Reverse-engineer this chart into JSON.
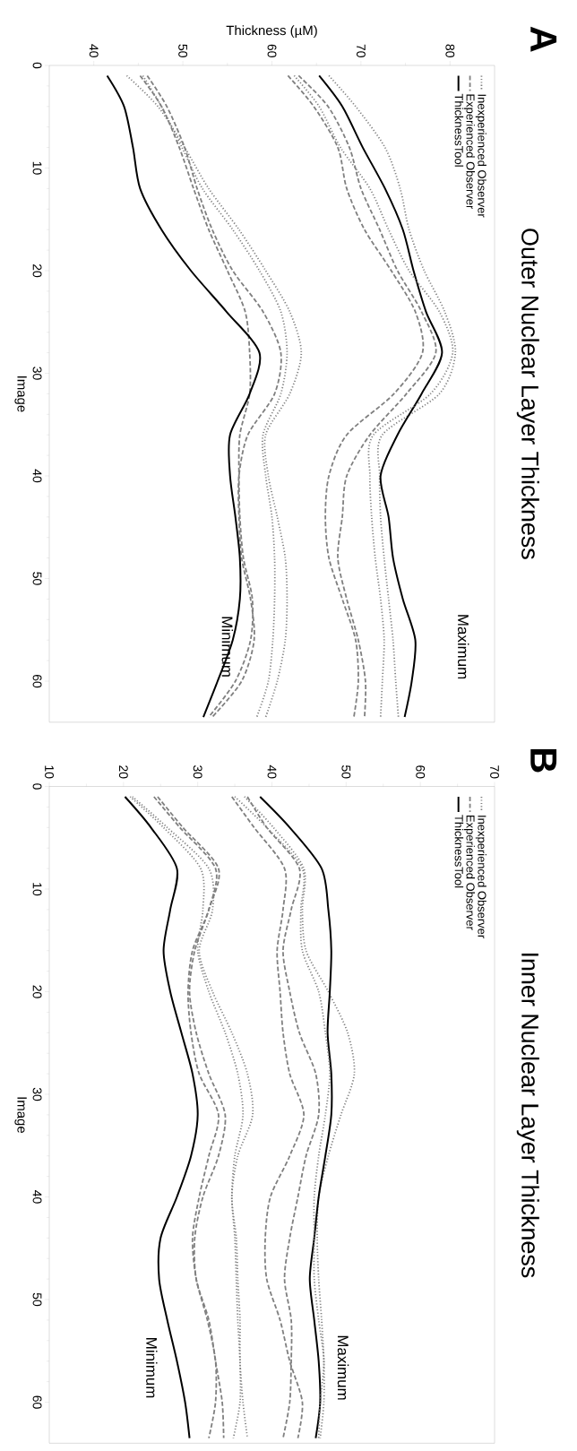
{
  "chart_data": [
    {
      "type": "line",
      "xlabel": "Thickness (µM)",
      "ylabel": "Image",
      "xlim": [
        35,
        85
      ],
      "ylim": [
        64,
        0
      ],
      "xticks": [
        40,
        50,
        60,
        70,
        80
      ],
      "yticks": [
        0,
        10,
        20,
        30,
        40,
        50,
        60
      ],
      "legend": "top right",
      "series": [
        {
          "name": "Inexperienced Observer",
          "color": "#808080",
          "line_style": "dotted",
          "x": [
            66.4,
            69.4,
            72.7,
            74.4,
            75.4,
            77.1,
            79.4,
            80.6,
            78.8,
            72.4,
            72.1,
            72.2,
            72.6,
            73.1,
            73.6,
            73.9,
            74.2
          ],
          "values": [
            1,
            4,
            8,
            12,
            16,
            20,
            24,
            28,
            32,
            36,
            40,
            44,
            48,
            52,
            56,
            60,
            63.5
          ]
        },
        {
          "name": "Experienced Observer",
          "color": "#808080",
          "line_style": "dashed",
          "x": [
            63.0,
            66.3,
            68.7,
            70.0,
            72.1,
            74.1,
            76.8,
            78.4,
            75.1,
            71.0,
            68.4,
            67.9,
            67.4,
            68.4,
            69.7,
            70.5,
            70.4
          ],
          "values": [
            1,
            4,
            8,
            12,
            16,
            20,
            24,
            28,
            32,
            36,
            40,
            44,
            48,
            52,
            56,
            60,
            63.5
          ]
        },
        {
          "name": "ThicknessTool",
          "color": "#000000",
          "line_style": "solid",
          "x": [
            65.3,
            67.9,
            70.2,
            72.7,
            74.7,
            75.9,
            77.3,
            79.1,
            76.8,
            74.1,
            72.2,
            73.1,
            73.6,
            74.7,
            76.1,
            75.7,
            74.9
          ],
          "values": [
            1,
            4,
            8,
            12,
            16,
            20,
            24,
            28,
            32,
            36,
            40,
            44,
            48,
            52,
            56,
            60,
            63.5
          ]
        },
        {
          "color": "#808080",
          "line_style": "dotted",
          "x": [
            62.5,
            65.3,
            67.7,
            71.0,
            73.1,
            75.4,
            78.8,
            80.3,
            77.8,
            71.4,
            71.0,
            71.2,
            71.6,
            72.2,
            72.6,
            72.4,
            72.2
          ],
          "values": [
            1,
            4,
            8,
            12,
            16,
            20,
            24,
            28,
            32,
            36,
            40,
            44,
            48,
            52,
            56,
            60,
            63.5
          ]
        },
        {
          "color": "#808080",
          "line_style": "dashed",
          "x": [
            61.8,
            64.7,
            67.4,
            68.4,
            70.4,
            73.4,
            76.1,
            76.9,
            73.7,
            68.4,
            66.4,
            66.0,
            66.4,
            67.9,
            69.4,
            69.7,
            69.2
          ],
          "values": [
            1,
            4,
            8,
            12,
            16,
            20,
            24,
            28,
            32,
            36,
            40,
            44,
            48,
            52,
            56,
            60,
            63.5
          ]
        },
        {
          "color": "#808080",
          "line_style": "dotted",
          "x": [
            43.7,
            47.2,
            50.2,
            52.9,
            56.3,
            59.3,
            62.0,
            63.3,
            62.0,
            59.3,
            59.6,
            60.6,
            61.5,
            61.7,
            61.5,
            60.6,
            59.3
          ],
          "values": [
            1,
            4,
            8,
            12,
            16,
            20,
            24,
            28,
            32,
            36,
            40,
            44,
            48,
            52,
            56,
            60,
            63.5
          ]
        },
        {
          "color": "#808080",
          "line_style": "dotted",
          "x": [
            45.5,
            47.6,
            49.9,
            52.2,
            55.6,
            58.6,
            61.0,
            61.7,
            61.0,
            59.0,
            59.3,
            60.0,
            60.3,
            60.3,
            60.1,
            59.6,
            58.3
          ],
          "values": [
            1,
            4,
            8,
            12,
            16,
            20,
            24,
            28,
            32,
            36,
            40,
            44,
            48,
            52,
            56,
            60,
            63.5
          ]
        },
        {
          "color": "#808080",
          "line_style": "dashed",
          "x": [
            46.0,
            48.2,
            50.2,
            51.6,
            53.3,
            55.6,
            59.0,
            61.0,
            60.3,
            57.3,
            56.3,
            56.3,
            56.6,
            57.6,
            58.0,
            56.6,
            53.3
          ],
          "values": [
            1,
            4,
            8,
            12,
            16,
            20,
            24,
            28,
            32,
            36,
            40,
            44,
            48,
            52,
            56,
            60,
            63.5
          ]
        },
        {
          "color": "#808080",
          "line_style": "dashed",
          "x": [
            45.2,
            47.6,
            49.6,
            51.2,
            52.9,
            55.0,
            57.0,
            57.5,
            57.5,
            56.4,
            56.3,
            56.4,
            56.8,
            57.8,
            57.6,
            55.9,
            52.9
          ],
          "values": [
            1,
            4,
            8,
            12,
            16,
            20,
            24,
            28,
            32,
            36,
            40,
            44,
            48,
            52,
            56,
            60,
            63.5
          ]
        },
        {
          "color": "#000000",
          "line_style": "solid",
          "x": [
            41.5,
            43.4,
            44.4,
            45.2,
            47.6,
            50.9,
            54.9,
            58.6,
            57.5,
            55.3,
            55.3,
            55.9,
            56.4,
            56.4,
            55.6,
            53.9,
            52.3
          ],
          "values": [
            1,
            4,
            8,
            12,
            16,
            20,
            24,
            28,
            32,
            36,
            40,
            44,
            48,
            52,
            56,
            60,
            63.5
          ]
        }
      ],
      "annotations": [
        "A",
        "Outer Nuclear Layer Thickness",
        "Maximum",
        "Minimum"
      ]
    },
    {
      "type": "line",
      "ylabel": "Image",
      "xlim": [
        10,
        70
      ],
      "ylim": [
        64,
        0
      ],
      "xticks": [
        10,
        20,
        30,
        40,
        50,
        60,
        70
      ],
      "yticks": [
        0,
        10,
        20,
        30,
        40,
        50,
        60
      ],
      "legend": "top right",
      "series": [
        {
          "name": "Inexperienced Observer",
          "color": "#808080",
          "line_style": "dotted",
          "x": [
            36.3,
            40.2,
            44.3,
            44.1,
            44.6,
            47.6,
            50.2,
            51.1,
            49.3,
            47.6,
            46.3,
            46.1,
            46.3,
            46.7,
            47.0,
            47.0,
            46.5
          ],
          "values": [
            1,
            4,
            8,
            12,
            16,
            20,
            24,
            28,
            32,
            36,
            40,
            44,
            48,
            52,
            56,
            60,
            63.5
          ]
        },
        {
          "name": "Experienced Observer",
          "color": "#808080",
          "line_style": "dashed",
          "x": [
            36.7,
            39.3,
            43.7,
            42.6,
            41.5,
            42.4,
            43.7,
            45.9,
            46.3,
            44.6,
            43.5,
            42.4,
            41.7,
            42.6,
            42.6,
            42.4,
            41.5
          ],
          "values": [
            1,
            4,
            8,
            12,
            16,
            20,
            24,
            28,
            32,
            36,
            40,
            44,
            48,
            52,
            56,
            60,
            63.5
          ]
        },
        {
          "name": "ThicknessTool",
          "color": "#000000",
          "line_style": "solid",
          "x": [
            38.4,
            42.4,
            46.7,
            47.6,
            48.0,
            47.8,
            47.5,
            48.0,
            48.0,
            47.2,
            46.3,
            45.7,
            45.1,
            45.7,
            46.3,
            46.5,
            45.9
          ],
          "values": [
            1,
            4,
            8,
            12,
            16,
            20,
            24,
            28,
            32,
            36,
            40,
            44,
            48,
            52,
            56,
            60,
            63.5
          ]
        },
        {
          "color": "#808080",
          "line_style": "dotted",
          "x": [
            35.0,
            39.3,
            44.1,
            43.9,
            44.1,
            46.3,
            47.2,
            47.8,
            47.2,
            46.3,
            45.7,
            45.7,
            45.7,
            46.3,
            47.0,
            46.5,
            46.3
          ],
          "values": [
            1,
            4,
            8,
            12,
            16,
            20,
            24,
            28,
            32,
            36,
            40,
            44,
            48,
            52,
            56,
            60,
            63.5
          ]
        },
        {
          "color": "#808080",
          "line_style": "dashed",
          "x": [
            34.6,
            37.6,
            41.7,
            41.5,
            40.7,
            41.1,
            41.5,
            42.4,
            44.3,
            42.4,
            39.8,
            39.1,
            39.3,
            41.1,
            42.4,
            44.1,
            43.5
          ],
          "values": [
            1,
            4,
            8,
            12,
            16,
            20,
            24,
            28,
            32,
            36,
            40,
            44,
            48,
            52,
            56,
            60,
            63.5
          ]
        },
        {
          "color": "#808080",
          "line_style": "dotted",
          "x": [
            21.2,
            25.9,
            31.5,
            32.0,
            30.2,
            32.0,
            34.6,
            36.7,
            37.4,
            35.4,
            34.6,
            35.2,
            35.4,
            35.7,
            35.7,
            36.1,
            36.7
          ],
          "values": [
            1,
            4,
            8,
            12,
            16,
            20,
            24,
            28,
            32,
            36,
            40,
            44,
            48,
            52,
            56,
            60,
            63.5
          ]
        },
        {
          "color": "#808080",
          "line_style": "dotted",
          "x": [
            20.9,
            25.4,
            30.4,
            30.7,
            30.0,
            31.5,
            33.7,
            35.4,
            36.1,
            35.0,
            34.6,
            35.0,
            35.2,
            35.4,
            35.7,
            35.7,
            34.8
          ],
          "values": [
            1,
            4,
            8,
            12,
            16,
            20,
            24,
            28,
            32,
            36,
            40,
            44,
            48,
            52,
            56,
            60,
            63.5
          ]
        },
        {
          "color": "#808080",
          "line_style": "dashed",
          "x": [
            24.6,
            28.0,
            32.8,
            31.5,
            29.6,
            28.9,
            29.8,
            31.5,
            33.7,
            32.8,
            30.7,
            29.6,
            29.8,
            31.5,
            32.4,
            33.3,
            33.5
          ],
          "values": [
            1,
            4,
            8,
            12,
            16,
            20,
            24,
            28,
            32,
            36,
            40,
            44,
            48,
            52,
            56,
            60,
            63.5
          ]
        },
        {
          "color": "#808080",
          "line_style": "dashed",
          "x": [
            24.1,
            27.6,
            32.4,
            31.5,
            29.3,
            28.7,
            29.1,
            30.2,
            32.8,
            31.5,
            30.2,
            29.3,
            29.8,
            31.3,
            32.4,
            32.4,
            31.5
          ],
          "values": [
            1,
            4,
            8,
            12,
            16,
            20,
            24,
            28,
            32,
            36,
            40,
            44,
            48,
            52,
            56,
            60,
            63.5
          ]
        },
        {
          "color": "#000000",
          "line_style": "solid",
          "x": [
            20.2,
            23.7,
            27.2,
            26.3,
            25.4,
            26.3,
            27.8,
            29.3,
            30.0,
            29.1,
            27.2,
            25.0,
            24.8,
            25.9,
            27.2,
            28.3,
            28.9
          ],
          "values": [
            1,
            4,
            8,
            12,
            16,
            20,
            24,
            28,
            32,
            36,
            40,
            44,
            48,
            52,
            56,
            60,
            63.5
          ]
        }
      ],
      "annotations": [
        "B",
        "Inner Nuclear Layer Thickness",
        "Maximum",
        "Minimum"
      ]
    }
  ]
}
